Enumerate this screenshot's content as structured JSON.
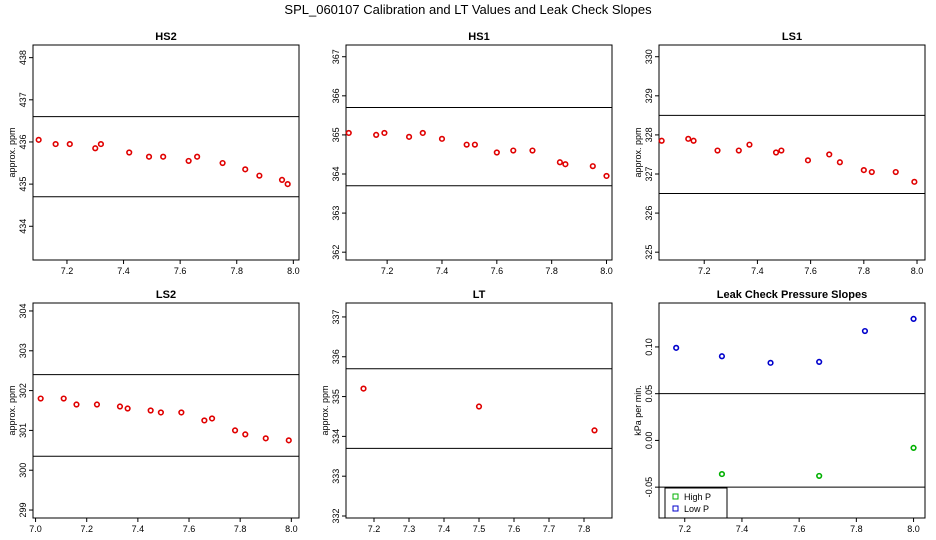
{
  "title": "SPL_060107  Calibration and LT Values and Leak Check Slopes",
  "chart_data": [
    {
      "type": "scatter",
      "title": "HS2",
      "ylabel": "approx. ppm",
      "xlim": [
        7.08,
        8.02
      ],
      "ylim": [
        433.2,
        438.3
      ],
      "xticks": [
        "7.2",
        "7.4",
        "7.6",
        "7.8",
        "8.0"
      ],
      "yticks": [
        "434",
        "435",
        "436",
        "437",
        "438"
      ],
      "hlines": [
        436.6,
        434.7
      ],
      "series": [
        {
          "color": "#e00000",
          "x": [
            7.1,
            7.16,
            7.21,
            7.3,
            7.32,
            7.42,
            7.49,
            7.54,
            7.63,
            7.66,
            7.75,
            7.83,
            7.88,
            7.96,
            7.98
          ],
          "y": [
            436.05,
            435.95,
            435.95,
            435.85,
            435.95,
            435.75,
            435.65,
            435.65,
            435.55,
            435.65,
            435.5,
            435.35,
            435.2,
            435.1,
            435.0
          ]
        }
      ]
    },
    {
      "type": "scatter",
      "title": "HS1",
      "ylabel": "",
      "xlim": [
        7.05,
        8.02
      ],
      "ylim": [
        361.8,
        367.3
      ],
      "xticks": [
        "7.2",
        "7.4",
        "7.6",
        "7.8",
        "8.0"
      ],
      "yticks": [
        "362",
        "363",
        "364",
        "365",
        "366",
        "367"
      ],
      "hlines": [
        365.7,
        363.7
      ],
      "series": [
        {
          "color": "#e00000",
          "x": [
            7.06,
            7.16,
            7.19,
            7.28,
            7.33,
            7.4,
            7.49,
            7.52,
            7.6,
            7.66,
            7.73,
            7.83,
            7.85,
            7.95,
            8.0
          ],
          "y": [
            365.05,
            365.0,
            365.05,
            364.95,
            365.05,
            364.9,
            364.75,
            364.75,
            364.55,
            364.6,
            364.6,
            364.3,
            364.25,
            364.2,
            363.95
          ]
        }
      ]
    },
    {
      "type": "scatter",
      "title": "LS1",
      "ylabel": "approx. ppm",
      "xlim": [
        7.03,
        8.03
      ],
      "ylim": [
        324.8,
        330.3
      ],
      "xticks": [
        "7.2",
        "7.4",
        "7.6",
        "7.8",
        "8.0"
      ],
      "yticks": [
        "325",
        "326",
        "327",
        "328",
        "329",
        "330"
      ],
      "hlines": [
        328.5,
        326.5
      ],
      "series": [
        {
          "color": "#e00000",
          "x": [
            7.04,
            7.14,
            7.16,
            7.25,
            7.33,
            7.37,
            7.47,
            7.49,
            7.59,
            7.67,
            7.71,
            7.8,
            7.83,
            7.92,
            7.99
          ],
          "y": [
            327.85,
            327.9,
            327.85,
            327.6,
            327.6,
            327.75,
            327.55,
            327.6,
            327.35,
            327.5,
            327.3,
            327.1,
            327.05,
            327.05,
            326.8
          ]
        }
      ]
    },
    {
      "type": "scatter",
      "title": "LS2",
      "ylabel": "approx. ppm",
      "xlim": [
        6.99,
        8.03
      ],
      "ylim": [
        298.8,
        304.2
      ],
      "xticks": [
        "7.0",
        "7.2",
        "7.4",
        "7.6",
        "7.8",
        "8.0"
      ],
      "yticks": [
        "299",
        "300",
        "301",
        "302",
        "303",
        "304"
      ],
      "hlines": [
        302.4,
        300.35
      ],
      "series": [
        {
          "color": "#e00000",
          "x": [
            7.02,
            7.11,
            7.16,
            7.24,
            7.33,
            7.36,
            7.45,
            7.49,
            7.57,
            7.66,
            7.69,
            7.78,
            7.82,
            7.9,
            7.99
          ],
          "y": [
            301.8,
            301.8,
            301.65,
            301.65,
            301.6,
            301.55,
            301.5,
            301.45,
            301.45,
            301.25,
            301.3,
            301.0,
            300.9,
            300.8,
            300.75
          ]
        }
      ]
    },
    {
      "type": "scatter",
      "title": "LT",
      "ylabel": "approx. ppm",
      "xlim": [
        7.12,
        7.88
      ],
      "ylim": [
        331.95,
        337.35
      ],
      "xticks": [
        "7.2",
        "7.3",
        "7.4",
        "7.5",
        "7.6",
        "7.7",
        "7.8"
      ],
      "yticks": [
        "332",
        "333",
        "334",
        "335",
        "336",
        "337"
      ],
      "hlines": [
        335.7,
        333.7
      ],
      "series": [
        {
          "color": "#e00000",
          "x": [
            7.17,
            7.5,
            7.83
          ],
          "y": [
            335.2,
            334.75,
            334.15
          ]
        }
      ]
    },
    {
      "type": "scatter",
      "title": "Leak Check Pressure Slopes",
      "ylabel": "kPa per min.",
      "xlim": [
        7.11,
        8.04
      ],
      "ylim": [
        -0.083,
        0.147
      ],
      "xticks": [
        "7.2",
        "7.4",
        "7.6",
        "7.8",
        "8.0"
      ],
      "yticks": [
        "-0.05",
        "0.00",
        "0.05",
        "0.10"
      ],
      "hlines": [
        0.05,
        -0.05
      ],
      "legend": {
        "position": "bottom-left",
        "entries": [
          {
            "label": "High P",
            "color": "#00b000"
          },
          {
            "label": "Low P",
            "color": "#0000cc"
          }
        ]
      },
      "series": [
        {
          "name": "High P",
          "color": "#00b000",
          "x": [
            7.33,
            7.67,
            8.0
          ],
          "y": [
            -0.036,
            -0.038,
            -0.008
          ]
        },
        {
          "name": "Low P",
          "color": "#0000cc",
          "x": [
            7.17,
            7.33,
            7.5,
            7.67,
            7.83,
            8.0
          ],
          "y": [
            0.099,
            0.09,
            0.083,
            0.084,
            0.117,
            0.13
          ]
        }
      ]
    }
  ]
}
